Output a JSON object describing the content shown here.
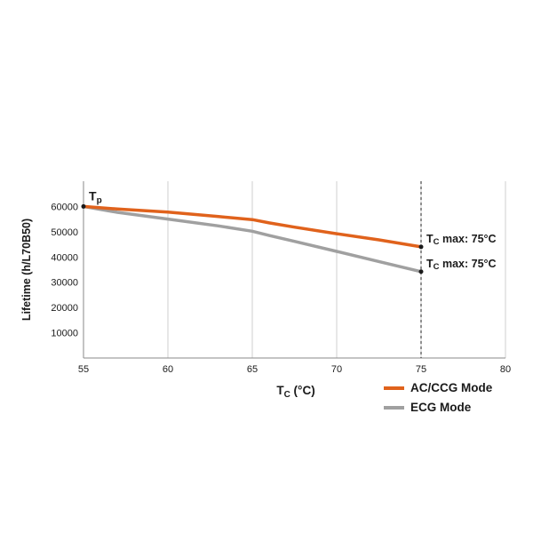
{
  "chart_data": {
    "type": "line",
    "title": "",
    "xlabel": "T",
    "xlabel_sub": "C",
    "xlabel_suffix": " (°C)",
    "ylabel": "Lifetime (h/L70B50)",
    "xlim": [
      55,
      80
    ],
    "ylim": [
      0,
      70000
    ],
    "xticks": [
      "55",
      "60",
      "65",
      "70",
      "75",
      "80"
    ],
    "yticks": [
      "10000",
      "20000",
      "30000",
      "40000",
      "50000",
      "60000"
    ],
    "grid": "vertical",
    "legend_position": "bottom-right",
    "series": [
      {
        "name": "AC/CCG Mode",
        "color": "#e0621c",
        "x": [
          55,
          57,
          60,
          63,
          65,
          66,
          67.5,
          70,
          72.5,
          75
        ],
        "y": [
          60000,
          59000,
          57800,
          56000,
          54800,
          53500,
          51800,
          49200,
          46800,
          44000
        ]
      },
      {
        "name": "ECG Mode",
        "color": "#a0a0a0",
        "x": [
          55,
          57,
          60,
          63,
          65,
          66,
          67.5,
          70,
          72.5,
          75
        ],
        "y": [
          60000,
          57700,
          55000,
          52300,
          50200,
          48500,
          46200,
          42200,
          38200,
          34200
        ]
      }
    ],
    "reference_line": {
      "x": 75,
      "style": "dashed"
    },
    "annotations": {
      "tp": {
        "main": "T",
        "sub": "p",
        "x": 55,
        "y": 60000
      },
      "max_labels": [
        {
          "main": "T",
          "sub": "C",
          "text": " max: 75°C",
          "x": 75,
          "y": 44000
        },
        {
          "main": "T",
          "sub": "C",
          "text": " max: 75°C",
          "x": 75,
          "y": 34200
        }
      ]
    }
  }
}
